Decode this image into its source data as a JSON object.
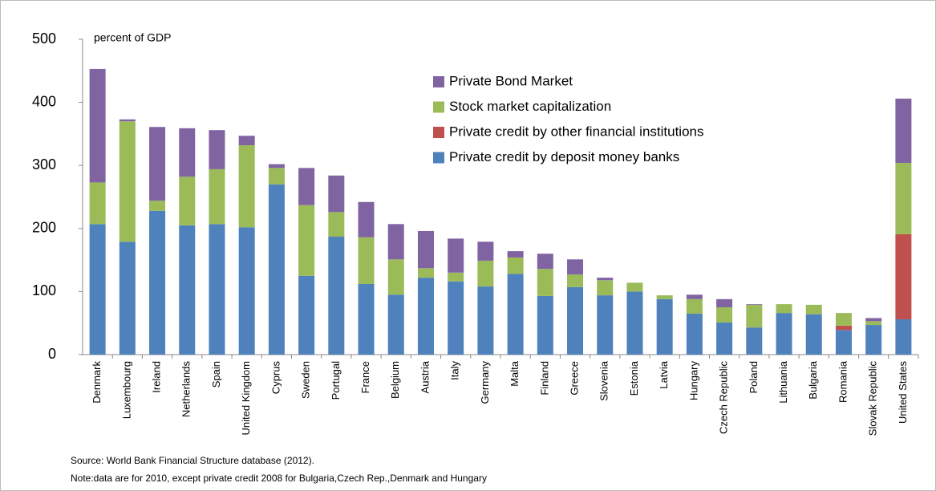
{
  "chart_data": {
    "type": "stacked_bar",
    "annotation": "percent of GDP",
    "categories": [
      "Denmark",
      "Luxembourg",
      "Ireland",
      "Netherlands",
      "Spain",
      "United Kingdom",
      "Cyprus",
      "Sweden",
      "Portugal",
      "France",
      "Belgium",
      "Austria",
      "Italy",
      "Germany",
      "Malta",
      "Finland",
      "Greece",
      "Slovenia",
      "Estonia",
      "Latvia",
      "Hungary",
      "Czech Republic",
      "Poland",
      "Lithuania",
      "Bulgaria",
      "Romania",
      "Slovak Republic",
      "United States"
    ],
    "series": [
      {
        "name": "Private credit by deposit money banks",
        "color": "#4f81bd",
        "values": [
          207,
          179,
          228,
          205,
          207,
          202,
          270,
          125,
          187,
          112,
          95,
          122,
          116,
          108,
          128,
          93,
          107,
          94,
          100,
          88,
          65,
          51,
          43,
          66,
          64,
          39,
          47,
          56
        ]
      },
      {
        "name": "Private credit by other financial institutions",
        "color": "#c0504d",
        "values": [
          0,
          0,
          0,
          0,
          0,
          0,
          0,
          0,
          0,
          0,
          0,
          0,
          0,
          0,
          0,
          0,
          0,
          0,
          0,
          0,
          0,
          0,
          0,
          0,
          0,
          7,
          0,
          135
        ]
      },
      {
        "name": "Stock market capitalization",
        "color": "#9bbb59",
        "values": [
          66,
          191,
          16,
          77,
          87,
          130,
          26,
          112,
          39,
          74,
          56,
          15,
          14,
          41,
          26,
          43,
          20,
          24,
          14,
          6,
          23,
          24,
          36,
          14,
          15,
          20,
          6,
          113
        ]
      },
      {
        "name": "Private Bond Market",
        "color": "#8064a2",
        "values": [
          180,
          3,
          117,
          77,
          62,
          15,
          6,
          59,
          58,
          56,
          56,
          59,
          54,
          30,
          10,
          24,
          24,
          4,
          0,
          0,
          7,
          13,
          1,
          0,
          0,
          0,
          5,
          102
        ]
      }
    ],
    "ylim": [
      0,
      500
    ],
    "yticks": [
      0,
      100,
      200,
      300,
      400,
      500
    ],
    "grid": false,
    "source": "Source: World Bank Financial Structure database (2012).",
    "note": "Note:data are for 2010, except  private credit  2008 for  Bulgaria,Czech Rep.,Denmark and Hungary"
  }
}
